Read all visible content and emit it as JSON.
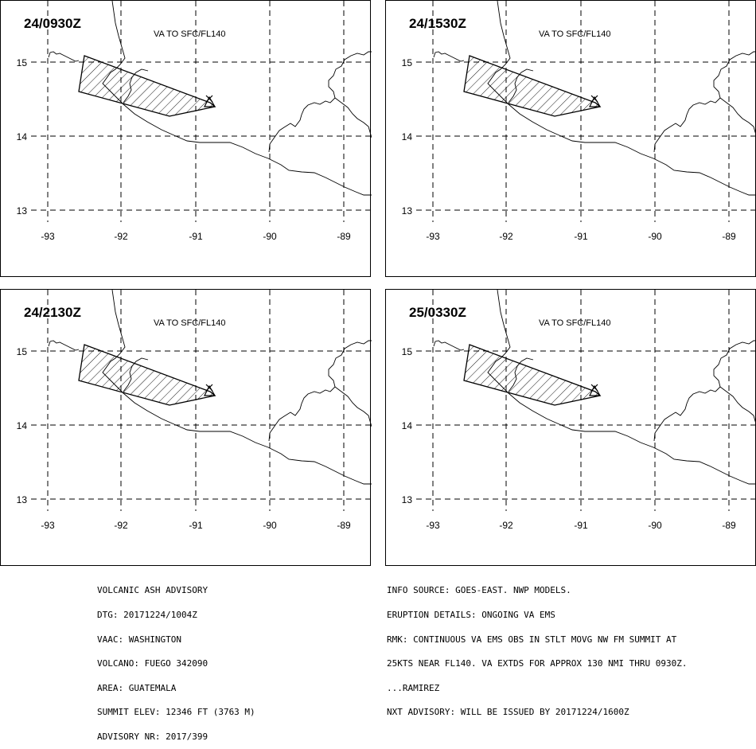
{
  "panels": [
    {
      "time": "24/0930Z",
      "label": "VA TO SFC/FL140"
    },
    {
      "time": "24/1530Z",
      "label": "VA TO SFC/FL140"
    },
    {
      "time": "24/2130Z",
      "label": "VA TO SFC/FL140"
    },
    {
      "time": "25/0330Z",
      "label": "VA TO SFC/FL140"
    }
  ],
  "map": {
    "lon_ticks": [
      "-93",
      "-92",
      "-91",
      "-90",
      "-89"
    ],
    "lat_ticks": [
      "15",
      "14",
      "13"
    ]
  },
  "advisory_left": [
    "VOLCANIC ASH ADVISORY",
    "DTG: 20171224/1004Z",
    "VAAC: WASHINGTON",
    "VOLCANO: FUEGO 342090",
    "AREA: GUATEMALA",
    "SUMMIT ELEV: 12346 FT (3763 M)",
    "ADVISORY NR: 2017/399"
  ],
  "advisory_right": [
    "INFO SOURCE: GOES-EAST. NWP MODELS.",
    "ERUPTION DETAILS: ONGOING VA EMS",
    "RMK: CONTINUOUS VA EMS OBS IN STLT MOVG NW FM SUMMIT AT",
    "25KTS NEAR FL140. VA EXTDS FOR APPROX 130 NMI THRU 0930Z.",
    "...RAMIREZ",
    "NXT ADVISORY: WILL BE ISSUED BY 20171224/1600Z"
  ]
}
